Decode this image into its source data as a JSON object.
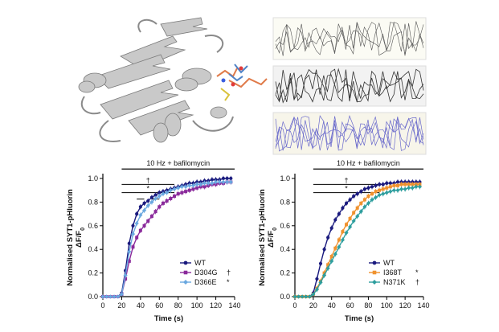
{
  "figure": {
    "panels": [
      "protein-structure",
      "molecular-dynamics-traces"
    ],
    "structure_highlight_colors": [
      "#e07b4a",
      "#4f83c7",
      "#d9c23a"
    ]
  },
  "chart_data": [
    {
      "type": "line",
      "title": "",
      "ylabel_line1": "Normalised SYT1-pHluorin",
      "ylabel_line2": "ΔF/F",
      "ylabel_sub": "0",
      "xlabel": "Time (s)",
      "xlim": [
        0,
        140
      ],
      "ylim": [
        0,
        1.0
      ],
      "x_ticks": [
        "0",
        "20",
        "40",
        "60",
        "80",
        "100",
        "120",
        "140"
      ],
      "y_ticks": [
        "0.0",
        "0.2",
        "0.4",
        "0.6",
        "0.8",
        "1.0"
      ],
      "stimulus_label": "10 Hz + bafilomycin",
      "stimulus_range": [
        20,
        140
      ],
      "significance_bars": [
        {
          "symbol": "†",
          "x_range": [
            20,
            76
          ],
          "y": 0.95
        },
        {
          "symbol": "*",
          "x_range": [
            20,
            76
          ],
          "y": 0.88
        }
      ],
      "segment_marks": [
        {
          "symbol": "*",
          "x_range": [
            36,
            44
          ],
          "y": 0.88
        },
        {
          "symbol": "*",
          "x_range": [
            52,
            60
          ],
          "y": 0.88
        }
      ],
      "legend_position": "bottom-right",
      "series": [
        {
          "name": "WT",
          "marker": "#1a1a7e",
          "color": "#1a1a7e",
          "x": [
            0,
            4,
            8,
            12,
            16,
            20,
            24,
            28,
            32,
            36,
            40,
            44,
            48,
            52,
            56,
            60,
            64,
            68,
            72,
            76,
            80,
            84,
            88,
            92,
            96,
            100,
            104,
            108,
            112,
            116,
            120,
            124,
            128,
            132,
            136
          ],
          "y": [
            0,
            0,
            0,
            0,
            0,
            0.03,
            0.22,
            0.45,
            0.6,
            0.7,
            0.76,
            0.79,
            0.81,
            0.84,
            0.86,
            0.88,
            0.89,
            0.9,
            0.91,
            0.92,
            0.93,
            0.94,
            0.95,
            0.96,
            0.96,
            0.97,
            0.97,
            0.98,
            0.98,
            0.99,
            0.99,
            0.99,
            1.0,
            1.0,
            1.0
          ]
        },
        {
          "name": "D304G",
          "marker_label": "†",
          "color": "#8a2a9b",
          "x": [
            0,
            4,
            8,
            12,
            16,
            20,
            24,
            28,
            32,
            36,
            40,
            44,
            48,
            52,
            56,
            60,
            64,
            68,
            72,
            76,
            80,
            84,
            88,
            92,
            96,
            100,
            104,
            108,
            112,
            116,
            120,
            124,
            128,
            132,
            136
          ],
          "y": [
            0,
            0,
            0,
            0,
            0,
            0.02,
            0.15,
            0.3,
            0.42,
            0.5,
            0.56,
            0.6,
            0.64,
            0.68,
            0.72,
            0.76,
            0.79,
            0.81,
            0.83,
            0.85,
            0.87,
            0.88,
            0.89,
            0.9,
            0.91,
            0.92,
            0.93,
            0.93,
            0.94,
            0.95,
            0.95,
            0.96,
            0.96,
            0.97,
            0.97
          ]
        },
        {
          "name": "D366E",
          "marker_label": "*",
          "color": "#6aa8e0",
          "x": [
            0,
            4,
            8,
            12,
            16,
            20,
            24,
            28,
            32,
            36,
            40,
            44,
            48,
            52,
            56,
            60,
            64,
            68,
            72,
            76,
            80,
            84,
            88,
            92,
            96,
            100,
            104,
            108,
            112,
            116,
            120,
            124,
            128,
            132,
            136
          ],
          "y": [
            0,
            0,
            0,
            0,
            0,
            0.02,
            0.18,
            0.38,
            0.53,
            0.62,
            0.69,
            0.73,
            0.77,
            0.8,
            0.83,
            0.85,
            0.87,
            0.88,
            0.9,
            0.91,
            0.92,
            0.93,
            0.93,
            0.94,
            0.94,
            0.95,
            0.95,
            0.96,
            0.96,
            0.96,
            0.97,
            0.97,
            0.97,
            0.97,
            0.97
          ]
        }
      ]
    },
    {
      "type": "line",
      "title": "",
      "ylabel_line1": "Normalised SYT1-pHluorin",
      "ylabel_line2": "ΔF/F",
      "ylabel_sub": "0",
      "xlabel": "Time (s)",
      "xlim": [
        0,
        140
      ],
      "ylim": [
        0,
        1.0
      ],
      "x_ticks": [
        "0",
        "20",
        "40",
        "60",
        "80",
        "100",
        "120",
        "140"
      ],
      "y_ticks": [
        "0.0",
        "0.2",
        "0.4",
        "0.6",
        "0.8",
        "1.0"
      ],
      "stimulus_label": "10 Hz + bafilomycin",
      "stimulus_range": [
        20,
        140
      ],
      "significance_bars": [
        {
          "symbol": "†",
          "x_range": [
            20,
            92
          ],
          "y": 0.95
        },
        {
          "symbol": "*",
          "x_range": [
            20,
            92
          ],
          "y": 0.88
        }
      ],
      "segment_marks": [],
      "legend_position": "bottom-right",
      "series": [
        {
          "name": "WT",
          "color": "#1a1a7e",
          "x": [
            0,
            4,
            8,
            12,
            16,
            20,
            24,
            28,
            32,
            36,
            40,
            44,
            48,
            52,
            56,
            60,
            64,
            68,
            72,
            76,
            80,
            84,
            88,
            92,
            96,
            100,
            104,
            108,
            112,
            116,
            120,
            124,
            128,
            132,
            136
          ],
          "y": [
            0,
            0,
            0,
            0,
            0,
            0.03,
            0.15,
            0.28,
            0.4,
            0.5,
            0.58,
            0.65,
            0.7,
            0.75,
            0.79,
            0.82,
            0.85,
            0.87,
            0.89,
            0.91,
            0.92,
            0.93,
            0.94,
            0.95,
            0.95,
            0.96,
            0.96,
            0.96,
            0.97,
            0.97,
            0.97,
            0.97,
            0.97,
            0.97,
            0.97
          ]
        },
        {
          "name": "I368T",
          "marker_label": "*",
          "color": "#f0922e",
          "x": [
            0,
            4,
            8,
            12,
            16,
            20,
            24,
            28,
            32,
            36,
            40,
            44,
            48,
            52,
            56,
            60,
            64,
            68,
            72,
            76,
            80,
            84,
            88,
            92,
            96,
            100,
            104,
            108,
            112,
            116,
            120,
            124,
            128,
            132,
            136
          ],
          "y": [
            0,
            0,
            0,
            0,
            0,
            0.02,
            0.07,
            0.13,
            0.2,
            0.27,
            0.34,
            0.41,
            0.48,
            0.55,
            0.61,
            0.66,
            0.71,
            0.75,
            0.79,
            0.82,
            0.85,
            0.87,
            0.89,
            0.9,
            0.91,
            0.92,
            0.93,
            0.94,
            0.94,
            0.95,
            0.95,
            0.95,
            0.95,
            0.95,
            0.95
          ]
        },
        {
          "name": "N371K",
          "marker_label": "†",
          "color": "#2e9e9e",
          "x": [
            0,
            4,
            8,
            12,
            16,
            20,
            24,
            28,
            32,
            36,
            40,
            44,
            48,
            52,
            56,
            60,
            64,
            68,
            72,
            76,
            80,
            84,
            88,
            92,
            96,
            100,
            104,
            108,
            112,
            116,
            120,
            124,
            128,
            132,
            136
          ],
          "y": [
            0,
            0,
            0,
            0,
            0,
            0.02,
            0.06,
            0.12,
            0.18,
            0.24,
            0.3,
            0.36,
            0.42,
            0.48,
            0.54,
            0.59,
            0.64,
            0.68,
            0.72,
            0.76,
            0.79,
            0.82,
            0.84,
            0.86,
            0.87,
            0.88,
            0.89,
            0.9,
            0.9,
            0.91,
            0.91,
            0.92,
            0.92,
            0.93,
            0.93
          ]
        }
      ]
    }
  ]
}
